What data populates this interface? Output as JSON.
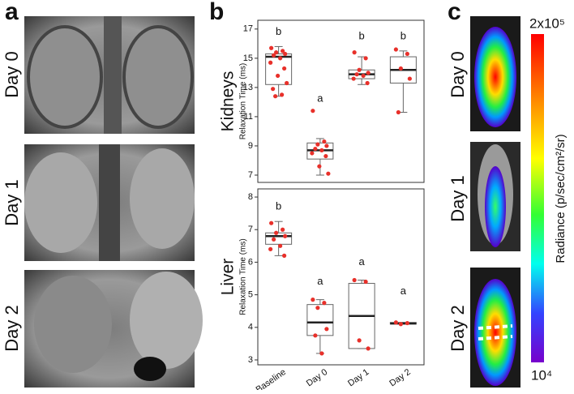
{
  "panel_labels": [
    "a",
    "b",
    "c"
  ],
  "mri_days": [
    "Day 0",
    "Day 1",
    "Day 2"
  ],
  "bli_days": [
    "Day 0",
    "Day 1",
    "Day 2"
  ],
  "colorbar": {
    "max_label": "2x10⁵",
    "min_label": "10⁴",
    "label": "Radiance (p/sec/cm²/sr)"
  },
  "chart_data": [
    {
      "type": "box",
      "title": "Kidneys",
      "y_label": "Relaxation Time (ms)",
      "ylim": [
        6.5,
        17.6
      ],
      "yticks": [
        7,
        9,
        11,
        13,
        15,
        17
      ],
      "box_color": "#666666",
      "point_color": "#e8302a",
      "boxes": [
        {
          "min": 12.4,
          "q1": 13.2,
          "median": 15.1,
          "q3": 15.3,
          "max": 15.8,
          "points": [
            15.7,
            15.5,
            15.4,
            15.3,
            15.2,
            15.0,
            14.7,
            14.3,
            13.8,
            13.3,
            12.9,
            12.5,
            12.4
          ]
        },
        {
          "min": 7.0,
          "q1": 8.1,
          "median": 8.7,
          "q3": 9.2,
          "max": 9.5,
          "points": [
            11.4,
            9.3,
            9.1,
            9.0,
            8.8,
            8.7,
            8.5,
            8.3,
            7.6,
            7.1
          ]
        },
        {
          "min": 13.2,
          "q1": 13.6,
          "median": 13.9,
          "q3": 14.2,
          "max": 15.1,
          "points": [
            15.4,
            15.0,
            14.2,
            14.0,
            13.9,
            13.8,
            13.6,
            13.3
          ]
        },
        {
          "min": 11.3,
          "q1": 13.3,
          "median": 14.2,
          "q3": 15.1,
          "max": 15.5,
          "points": [
            15.6,
            15.3,
            14.3,
            13.6,
            11.3
          ]
        }
      ],
      "annotations": [
        {
          "text": "b",
          "y": 16.8
        },
        {
          "text": "a",
          "y": 12.2
        },
        {
          "text": "b",
          "y": 16.5
        },
        {
          "text": "b",
          "y": 16.5
        }
      ]
    },
    {
      "type": "box",
      "title": "Liver",
      "y_label": "Relaxation Time (ms)",
      "ylim": [
        2.85,
        8.25
      ],
      "yticks": [
        3,
        4,
        5,
        6,
        7,
        8
      ],
      "categories": [
        "Baseline",
        "Day 0",
        "Day 1",
        "Day 2"
      ],
      "box_color": "#666666",
      "point_color": "#e8302a",
      "boxes": [
        {
          "min": 6.2,
          "q1": 6.55,
          "median": 6.8,
          "q3": 6.9,
          "max": 7.25,
          "points": [
            7.2,
            7.0,
            6.9,
            6.8,
            6.7,
            6.5,
            6.4,
            6.2
          ]
        },
        {
          "min": 3.2,
          "q1": 3.75,
          "median": 4.15,
          "q3": 4.7,
          "max": 4.85,
          "points": [
            4.85,
            4.75,
            4.6,
            3.95,
            3.75,
            3.2
          ]
        },
        {
          "min": 3.35,
          "q1": 3.35,
          "median": 4.35,
          "q3": 5.35,
          "max": 5.45,
          "points": [
            5.45,
            5.4,
            3.6,
            3.35
          ]
        },
        {
          "min": 4.1,
          "q1": 4.1,
          "median": 4.12,
          "q3": 4.15,
          "max": 4.15,
          "points": [
            4.15,
            4.13,
            4.1
          ]
        }
      ],
      "annotations": [
        {
          "text": "b",
          "y": 7.7
        },
        {
          "text": "a",
          "y": 5.4
        },
        {
          "text": "a",
          "y": 6.0
        },
        {
          "text": "a",
          "y": 5.1
        }
      ]
    }
  ]
}
